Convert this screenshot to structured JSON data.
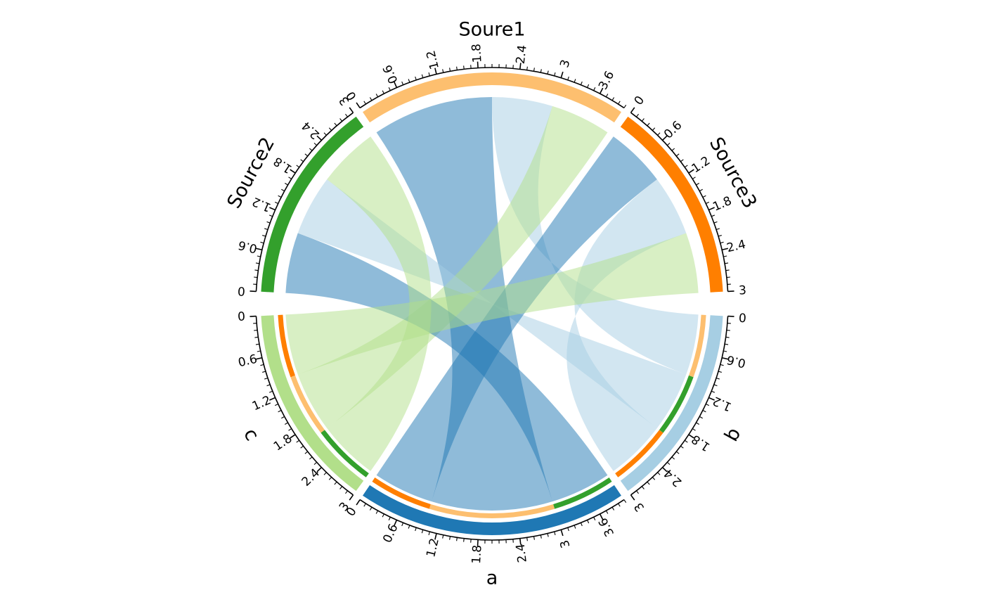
{
  "chart_data": {
    "type": "chord",
    "title": "",
    "sectors": [
      {
        "name": "Soure1",
        "size": 4.0,
        "color": "#fdbf6f",
        "tick_step": 0.6
      },
      {
        "name": "Source3",
        "size": 3.0,
        "color": "#ff7f00",
        "tick_step": 0.6
      },
      {
        "name": "b",
        "size": 3.0,
        "color": "#a6cee3",
        "tick_step": 0.6
      },
      {
        "name": "a",
        "size": 4.0,
        "color": "#1f78b4",
        "tick_step": 0.6
      },
      {
        "name": "c",
        "size": 3.0,
        "color": "#b2df8a",
        "tick_step": 0.6
      },
      {
        "name": "Source2",
        "size": 3.0,
        "color": "#33a02c",
        "tick_step": 0.6
      }
    ],
    "links": [
      {
        "source": "Soure1",
        "target": "a",
        "value": 2
      },
      {
        "source": "Soure1",
        "target": "b",
        "value": 1
      },
      {
        "source": "Soure1",
        "target": "c",
        "value": 1
      },
      {
        "source": "Source2",
        "target": "a",
        "value": 1
      },
      {
        "source": "Source2",
        "target": "b",
        "value": 1
      },
      {
        "source": "Source2",
        "target": "c",
        "value": 1
      },
      {
        "source": "Source3",
        "target": "a",
        "value": 1
      },
      {
        "source": "Source3",
        "target": "b",
        "value": 1
      },
      {
        "source": "Source3",
        "target": "c",
        "value": 1
      }
    ],
    "colors": {
      "link_a": "#1f78b4",
      "link_b": "#a6cee3",
      "link_c": "#b2df8a"
    }
  }
}
